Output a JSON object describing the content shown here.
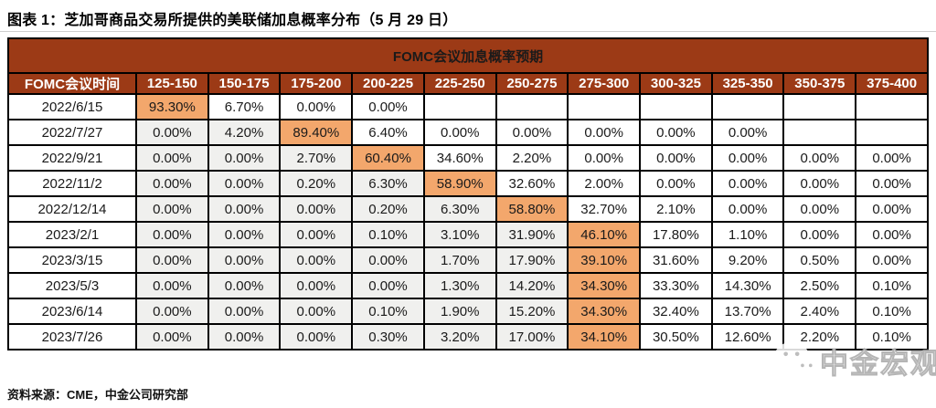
{
  "figure": {
    "title": "图表 1：芝加哥商品交易所提供的美联储加息概率分布（5 月 29 日）",
    "source": "资料来源：CME，中金公司研究部"
  },
  "table": {
    "band_title": "FOMC会议加息概率预期",
    "columns": [
      "FOMC会议时间",
      "125-150",
      "150-175",
      "175-200",
      "200-225",
      "225-250",
      "250-275",
      "275-300",
      "300-325",
      "325-350",
      "350-375",
      "375-400"
    ],
    "rows": [
      {
        "date": "2022/6/15",
        "values": [
          "93.30%",
          "6.70%",
          "0.00%",
          "0.00%",
          "",
          "",
          "",
          "",
          "",
          "",
          ""
        ],
        "highlight": 0
      },
      {
        "date": "2022/7/27",
        "values": [
          "0.00%",
          "4.20%",
          "89.40%",
          "6.40%",
          "0.00%",
          "0.00%",
          "0.00%",
          "0.00%",
          "0.00%",
          "",
          ""
        ],
        "highlight": 2
      },
      {
        "date": "2022/9/21",
        "values": [
          "0.00%",
          "0.00%",
          "2.70%",
          "60.40%",
          "34.60%",
          "2.20%",
          "0.00%",
          "0.00%",
          "0.00%",
          "0.00%",
          "0.00%"
        ],
        "highlight": 3
      },
      {
        "date": "2022/11/2",
        "values": [
          "0.00%",
          "0.00%",
          "0.20%",
          "6.30%",
          "58.90%",
          "32.60%",
          "2.00%",
          "0.00%",
          "0.00%",
          "0.00%",
          "0.00%"
        ],
        "highlight": 4
      },
      {
        "date": "2022/12/14",
        "values": [
          "0.00%",
          "0.00%",
          "0.00%",
          "0.20%",
          "6.30%",
          "58.80%",
          "32.70%",
          "2.10%",
          "0.00%",
          "0.00%",
          "0.00%"
        ],
        "highlight": 5
      },
      {
        "date": "2023/2/1",
        "values": [
          "0.00%",
          "0.00%",
          "0.00%",
          "0.10%",
          "3.10%",
          "31.90%",
          "46.10%",
          "17.80%",
          "1.10%",
          "0.00%",
          "0.00%"
        ],
        "highlight": 6
      },
      {
        "date": "2023/3/15",
        "values": [
          "0.00%",
          "0.00%",
          "0.00%",
          "0.00%",
          "1.70%",
          "17.90%",
          "39.10%",
          "31.60%",
          "9.20%",
          "0.50%",
          "0.00%"
        ],
        "highlight": 6
      },
      {
        "date": "2023/5/3",
        "values": [
          "0.00%",
          "0.00%",
          "0.00%",
          "0.00%",
          "1.30%",
          "14.20%",
          "34.30%",
          "33.30%",
          "14.30%",
          "2.50%",
          "0.10%"
        ],
        "highlight": 6
      },
      {
        "date": "2023/6/14",
        "values": [
          "0.00%",
          "0.00%",
          "0.00%",
          "0.10%",
          "1.90%",
          "15.20%",
          "34.30%",
          "32.40%",
          "13.70%",
          "2.40%",
          "0.10%"
        ],
        "highlight": 6
      },
      {
        "date": "2023/7/26",
        "values": [
          "0.00%",
          "0.00%",
          "0.00%",
          "0.30%",
          "3.20%",
          "17.00%",
          "34.10%",
          "30.50%",
          "12.60%",
          "2.20%",
          "0.10%"
        ],
        "highlight": 6
      }
    ]
  },
  "watermark": {
    "text": "中金宏观"
  },
  "colors": {
    "header-bg": "#9C3A16",
    "highlight": "#F3A76C",
    "muted-cell": "#F0F0EE",
    "grid": "#000000",
    "cell-text": "#1A1A1A",
    "title-text": "#000000"
  }
}
